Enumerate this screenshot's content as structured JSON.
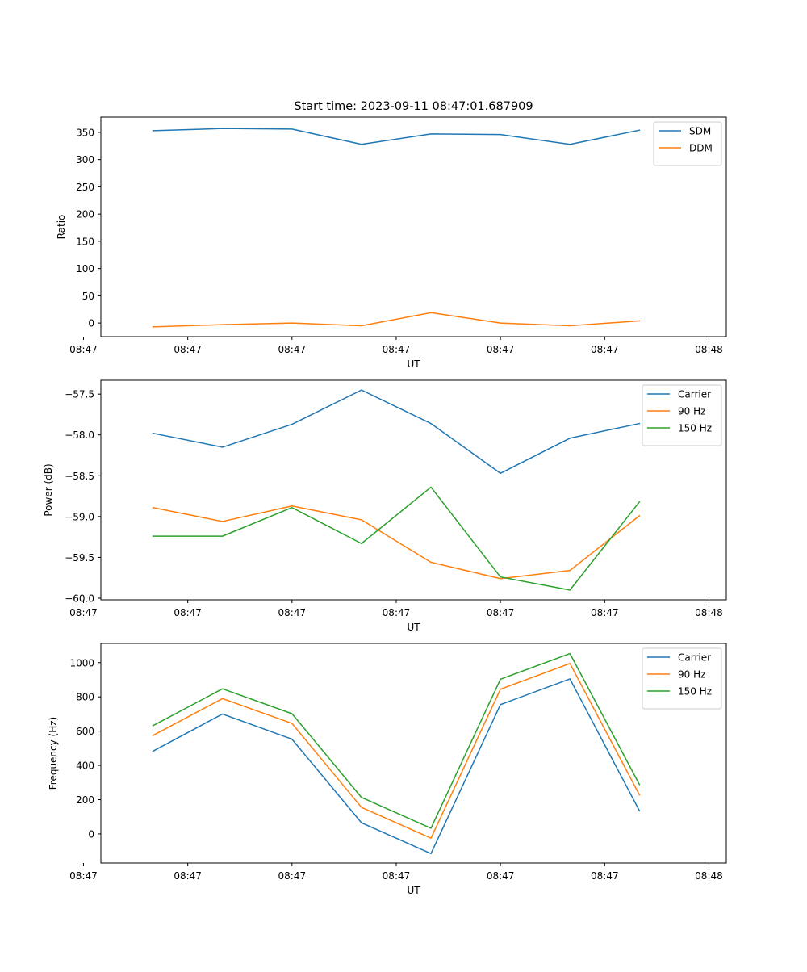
{
  "title": "Start time: 2023-09-11 08:47:01.687909",
  "colors": {
    "blue": "#1f77b4",
    "orange": "#ff7f0e",
    "green": "#2ca02c"
  },
  "chart_data": [
    {
      "type": "line",
      "ylabel": "Ratio",
      "xlabel": "UT",
      "x": [
        1,
        2,
        3,
        4,
        5,
        6,
        7,
        8
      ],
      "xlim": [
        0.25,
        9.25
      ],
      "x_ticks": [
        0,
        1.5,
        3,
        4.5,
        6,
        7.5,
        9
      ],
      "x_tick_labels": [
        "08:47",
        "08:47",
        "08:47",
        "08:47",
        "08:47",
        "08:47",
        "08:48"
      ],
      "ylim": [
        -25,
        378
      ],
      "y_ticks": [
        0,
        50,
        100,
        150,
        200,
        250,
        300,
        350
      ],
      "y_tick_labels": [
        "0",
        "50",
        "100",
        "150",
        "200",
        "250",
        "300",
        "350"
      ],
      "legend_position": "upper right",
      "series": [
        {
          "name": "SDM",
          "color": "#1f77b4",
          "values": [
            353,
            357,
            356,
            328,
            347,
            346,
            328,
            354
          ]
        },
        {
          "name": "DDM",
          "color": "#ff7f0e",
          "values": [
            -7,
            -3,
            0,
            -5,
            19,
            0,
            -5,
            4
          ]
        }
      ]
    },
    {
      "type": "line",
      "ylabel": "Power (dB)",
      "xlabel": "UT",
      "x": [
        1,
        2,
        3,
        4,
        5,
        6,
        7,
        8
      ],
      "xlim": [
        0.25,
        9.25
      ],
      "x_ticks": [
        0,
        1.5,
        3,
        4.5,
        6,
        7.5,
        9
      ],
      "x_tick_labels": [
        "08:47",
        "08:47",
        "08:47",
        "08:47",
        "08:47",
        "08:47",
        "08:48"
      ],
      "ylim": [
        -60.02,
        -57.33
      ],
      "y_ticks": [
        -60.0,
        -59.5,
        -59.0,
        -58.5,
        -58.0,
        -57.5
      ],
      "y_tick_labels": [
        "−60.0",
        "−59.5",
        "−59.0",
        "−58.5",
        "−58.0",
        "−57.5"
      ],
      "legend_position": "upper right",
      "series": [
        {
          "name": "Carrier",
          "color": "#1f77b4",
          "values": [
            -57.98,
            -58.15,
            -57.87,
            -57.45,
            -57.86,
            -58.47,
            -58.04,
            -57.86
          ]
        },
        {
          "name": "90 Hz",
          "color": "#ff7f0e",
          "values": [
            -58.89,
            -59.06,
            -58.87,
            -59.04,
            -59.56,
            -59.76,
            -59.66,
            -58.99
          ]
        },
        {
          "name": "150 Hz",
          "color": "#2ca02c",
          "values": [
            -59.24,
            -59.24,
            -58.89,
            -59.33,
            -58.64,
            -59.74,
            -59.9,
            -58.82
          ]
        }
      ]
    },
    {
      "type": "line",
      "ylabel": "Frequency (Hz)",
      "xlabel": "UT",
      "x": [
        1,
        2,
        3,
        4,
        5,
        6,
        7,
        8
      ],
      "xlim": [
        0.25,
        9.25
      ],
      "x_ticks": [
        0,
        1.5,
        3,
        4.5,
        6,
        7.5,
        9
      ],
      "x_tick_labels": [
        "08:47",
        "08:47",
        "08:47",
        "08:47",
        "08:47",
        "08:47",
        "08:48"
      ],
      "ylim": [
        -170,
        1112
      ],
      "y_ticks": [
        0,
        200,
        400,
        600,
        800,
        1000
      ],
      "y_tick_labels": [
        "0",
        "200",
        "400",
        "600",
        "800",
        "1000"
      ],
      "legend_position": "upper right",
      "series": [
        {
          "name": "Carrier",
          "color": "#1f77b4",
          "values": [
            483,
            700,
            553,
            65,
            -115,
            755,
            905,
            135
          ]
        },
        {
          "name": "90 Hz",
          "color": "#ff7f0e",
          "values": [
            575,
            790,
            645,
            155,
            -25,
            845,
            995,
            228
          ]
        },
        {
          "name": "150 Hz",
          "color": "#2ca02c",
          "values": [
            632,
            847,
            702,
            213,
            33,
            903,
            1053,
            288
          ]
        }
      ]
    }
  ]
}
